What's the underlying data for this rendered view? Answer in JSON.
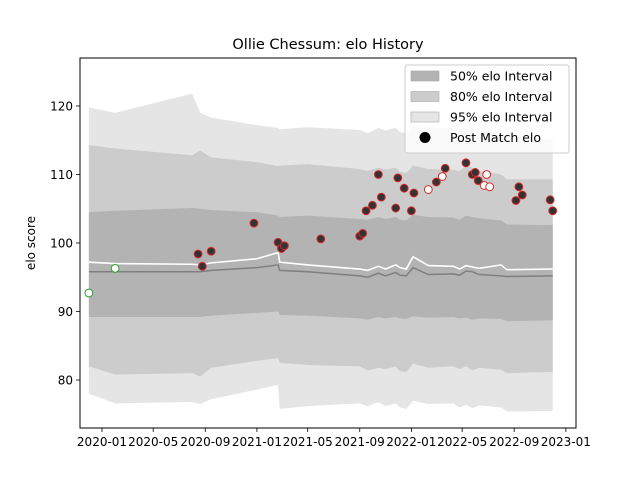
{
  "chart_data": {
    "type": "line",
    "title": "Ollie Chessum: elo History",
    "xlabel": "",
    "ylabel": "elo score",
    "xlim": [
      "2019-11-10",
      "2023-01-25"
    ],
    "ylim": [
      73,
      127
    ],
    "x_ticks": [
      "2020-01",
      "2020-05",
      "2020-09",
      "2021-01",
      "2021-05",
      "2021-09",
      "2022-01",
      "2022-05",
      "2022-09",
      "2023-01"
    ],
    "y_ticks": [
      80,
      90,
      100,
      110,
      120
    ],
    "grid": false,
    "legend_position": "top-right",
    "legend": [
      {
        "label": "50% elo Interval",
        "kind": "band",
        "color": "#b3b3b3"
      },
      {
        "label": "80% elo Interval",
        "kind": "band",
        "color": "#cccccc"
      },
      {
        "label": "95% elo Interval",
        "kind": "band",
        "color": "#e5e5e5"
      },
      {
        "label": "Post Match elo",
        "kind": "marker",
        "color": "#000000"
      }
    ],
    "band_colors": {
      "p50": "#b3b3b3",
      "p80": "#cccccc",
      "p95": "#e5e5e5"
    },
    "interval_series": {
      "x": [
        "2019-12-01",
        "2020-02-01",
        "2020-08-01",
        "2020-08-20",
        "2020-09-15",
        "2021-01-01",
        "2021-02-20",
        "2021-02-24",
        "2021-05-01",
        "2021-09-01",
        "2021-09-20",
        "2021-10-15",
        "2021-11-01",
        "2021-11-25",
        "2021-12-05",
        "2021-12-20",
        "2022-01-05",
        "2022-02-10",
        "2022-04-10",
        "2022-04-25",
        "2022-05-10",
        "2022-05-25",
        "2022-06-10",
        "2022-08-01",
        "2022-08-15",
        "2022-12-01"
      ],
      "mean": [
        97.2,
        97.0,
        96.9,
        96.8,
        97.1,
        97.7,
        98.6,
        97.2,
        96.8,
        96.2,
        96.0,
        96.6,
        96.2,
        96.8,
        96.4,
        96.2,
        98.0,
        96.7,
        96.6,
        96.2,
        96.7,
        96.5,
        96.3,
        96.8,
        96.1,
        96.2
      ],
      "median": [
        95.8,
        95.8,
        95.8,
        95.8,
        96.0,
        96.4,
        96.8,
        96.0,
        95.8,
        95.2,
        95.0,
        95.6,
        95.2,
        95.7,
        95.3,
        95.2,
        96.4,
        95.4,
        95.5,
        95.3,
        95.9,
        95.8,
        95.4,
        95.2,
        95.1,
        95.2
      ],
      "p50_low": [
        89.2,
        89.2,
        89.2,
        89.2,
        89.4,
        89.8,
        90.0,
        89.5,
        89.4,
        89.0,
        88.8,
        89.2,
        89.0,
        89.2,
        89.0,
        88.9,
        89.3,
        89.1,
        89.2,
        89.0,
        89.1,
        88.8,
        89.0,
        88.9,
        88.6,
        88.7
      ],
      "p50_high": [
        104.5,
        104.7,
        105.1,
        105.0,
        104.8,
        104.5,
        104.0,
        103.8,
        104.0,
        103.5,
        103.4,
        103.8,
        103.5,
        103.8,
        103.4,
        103.3,
        104.1,
        103.8,
        103.7,
        103.4,
        104.0,
        103.8,
        103.6,
        103.3,
        102.7,
        102.6
      ],
      "p80_low": [
        82.0,
        80.8,
        81.0,
        80.5,
        81.8,
        82.8,
        83.2,
        82.5,
        82.2,
        82.0,
        81.4,
        81.8,
        81.6,
        82.0,
        81.3,
        81.2,
        82.4,
        81.8,
        82.0,
        81.6,
        82.0,
        81.4,
        81.8,
        81.5,
        81.0,
        81.2
      ],
      "p80_high": [
        114.3,
        113.8,
        112.8,
        113.5,
        112.5,
        111.8,
        111.2,
        111.3,
        111.5,
        110.8,
        110.5,
        111.0,
        110.7,
        111.0,
        110.4,
        110.2,
        111.3,
        110.8,
        110.7,
        110.5,
        111.2,
        111.0,
        110.5,
        110.0,
        109.3,
        109.3
      ],
      "p95_low": [
        78.0,
        76.6,
        76.8,
        76.5,
        77.2,
        78.6,
        79.3,
        75.8,
        76.2,
        76.6,
        76.2,
        76.8,
        76.2,
        76.6,
        76.0,
        75.8,
        77.0,
        76.5,
        76.6,
        76.0,
        76.4,
        75.9,
        76.3,
        76.0,
        75.4,
        75.5
      ],
      "p95_high": [
        119.8,
        119.0,
        121.8,
        119.0,
        118.3,
        117.2,
        116.8,
        116.6,
        116.9,
        116.5,
        116.0,
        116.8,
        116.4,
        116.8,
        116.2,
        116.0,
        117.4,
        116.9,
        116.7,
        116.4,
        117.1,
        116.9,
        116.4,
        115.8,
        115.0,
        115.1
      ]
    },
    "points": [
      {
        "x": "2019-12-01",
        "y": 92.7,
        "edge": "#2ca02c",
        "fill": "#ffffff"
      },
      {
        "x": "2020-02-01",
        "y": 96.3,
        "edge": "#2ca02c",
        "fill": "#ffffff"
      },
      {
        "x": "2020-08-15",
        "y": 98.4,
        "edge": "#d62728",
        "fill": "#333333"
      },
      {
        "x": "2020-08-25",
        "y": 96.6,
        "edge": "#d62728",
        "fill": "#333333"
      },
      {
        "x": "2020-09-15",
        "y": 98.8,
        "edge": "#d62728",
        "fill": "#333333"
      },
      {
        "x": "2020-12-25",
        "y": 102.9,
        "edge": "#d62728",
        "fill": "#333333"
      },
      {
        "x": "2021-02-20",
        "y": 100.1,
        "edge": "#d62728",
        "fill": "#333333"
      },
      {
        "x": "2021-02-28",
        "y": 99.2,
        "edge": "#d62728",
        "fill": "#333333"
      },
      {
        "x": "2021-03-07",
        "y": 99.6,
        "edge": "#d62728",
        "fill": "#333333"
      },
      {
        "x": "2021-06-01",
        "y": 100.6,
        "edge": "#d62728",
        "fill": "#333333"
      },
      {
        "x": "2021-09-01",
        "y": 101.0,
        "edge": "#d62728",
        "fill": "#333333"
      },
      {
        "x": "2021-09-08",
        "y": 101.4,
        "edge": "#d62728",
        "fill": "#333333"
      },
      {
        "x": "2021-09-16",
        "y": 104.7,
        "edge": "#d62728",
        "fill": "#333333"
      },
      {
        "x": "2021-10-01",
        "y": 105.5,
        "edge": "#d62728",
        "fill": "#333333"
      },
      {
        "x": "2021-10-15",
        "y": 110.0,
        "edge": "#d62728",
        "fill": "#333333"
      },
      {
        "x": "2021-10-22",
        "y": 106.7,
        "edge": "#d62728",
        "fill": "#333333"
      },
      {
        "x": "2021-11-25",
        "y": 105.1,
        "edge": "#d62728",
        "fill": "#333333"
      },
      {
        "x": "2021-11-30",
        "y": 109.5,
        "edge": "#d62728",
        "fill": "#333333"
      },
      {
        "x": "2021-12-15",
        "y": 108.0,
        "edge": "#d62728",
        "fill": "#333333"
      },
      {
        "x": "2022-01-01",
        "y": 104.7,
        "edge": "#d62728",
        "fill": "#333333"
      },
      {
        "x": "2022-01-07",
        "y": 107.3,
        "edge": "#d62728",
        "fill": "#333333"
      },
      {
        "x": "2022-02-10",
        "y": 107.8,
        "edge": "#d62728",
        "fill": "#ffffff"
      },
      {
        "x": "2022-03-01",
        "y": 108.9,
        "edge": "#d62728",
        "fill": "#333333"
      },
      {
        "x": "2022-03-15",
        "y": 109.7,
        "edge": "#d62728",
        "fill": "#ffffff"
      },
      {
        "x": "2022-03-22",
        "y": 110.9,
        "edge": "#d62728",
        "fill": "#333333"
      },
      {
        "x": "2022-05-10",
        "y": 111.7,
        "edge": "#d62728",
        "fill": "#333333"
      },
      {
        "x": "2022-05-25",
        "y": 110.0,
        "edge": "#d62728",
        "fill": "#333333"
      },
      {
        "x": "2022-06-01",
        "y": 110.3,
        "edge": "#d62728",
        "fill": "#333333"
      },
      {
        "x": "2022-06-08",
        "y": 109.1,
        "edge": "#d62728",
        "fill": "#333333"
      },
      {
        "x": "2022-06-22",
        "y": 108.4,
        "edge": "#d62728",
        "fill": "#ffffff"
      },
      {
        "x": "2022-06-28",
        "y": 110.0,
        "edge": "#d62728",
        "fill": "#ffffff"
      },
      {
        "x": "2022-07-05",
        "y": 108.2,
        "edge": "#d62728",
        "fill": "#ffffff"
      },
      {
        "x": "2022-09-05",
        "y": 106.2,
        "edge": "#d62728",
        "fill": "#333333"
      },
      {
        "x": "2022-09-12",
        "y": 108.2,
        "edge": "#d62728",
        "fill": "#333333"
      },
      {
        "x": "2022-09-20",
        "y": 107.0,
        "edge": "#d62728",
        "fill": "#333333"
      },
      {
        "x": "2022-11-25",
        "y": 106.3,
        "edge": "#d62728",
        "fill": "#333333"
      },
      {
        "x": "2022-12-01",
        "y": 104.7,
        "edge": "#d62728",
        "fill": "#333333"
      }
    ]
  }
}
